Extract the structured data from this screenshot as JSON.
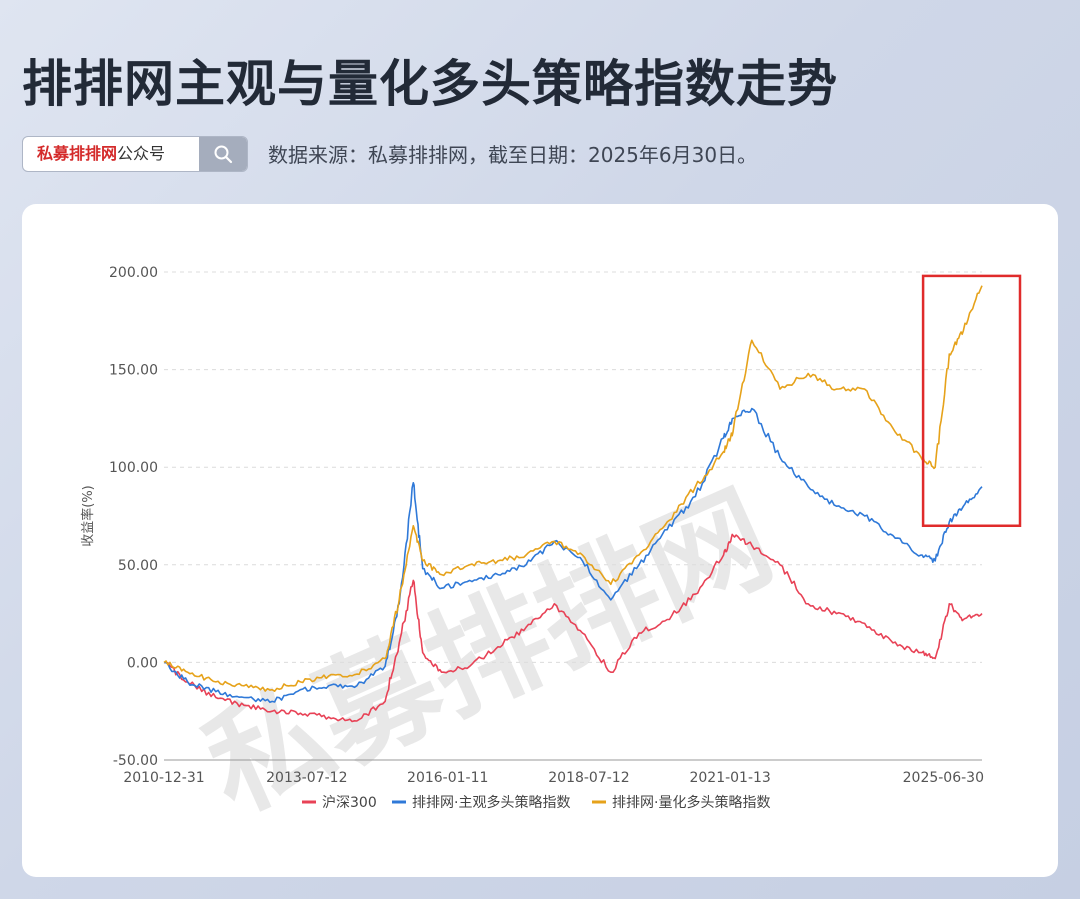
{
  "page_title": "排排网主观与量化多头策略指数走势",
  "account": {
    "highlight": "私募排排网",
    "suffix": "公众号"
  },
  "source_note": "数据来源：私募排排网，截至日期：2025年6月30日。",
  "icons": {
    "search": "search-icon"
  },
  "watermark": "私募排排网",
  "colors": {
    "hs300": "#e84256",
    "subjective": "#2f79d8",
    "quant": "#e6a21a",
    "highlight_box": "#e02b2b"
  },
  "chart_data": {
    "type": "line",
    "title": "",
    "ylabel": "收益率(%)",
    "xlabel": "",
    "ylim": [
      -50,
      200
    ],
    "y_ticks": [
      "200.00",
      "150.00",
      "100.00",
      "50.00",
      "0.00",
      "-50.00"
    ],
    "x_ticks": [
      "2010-12-31",
      "2013-07-12",
      "2016-01-11",
      "2018-07-12",
      "2021-01-13",
      "2025-06-30"
    ],
    "grid": "horizontal-dashed",
    "legend": "bottom",
    "x": [
      "2010-12-31",
      "2011-06",
      "2011-12",
      "2012-06",
      "2012-12",
      "2013-06",
      "2013-12",
      "2014-06",
      "2014-12",
      "2015-03",
      "2015-06",
      "2015-08",
      "2015-12",
      "2016-06",
      "2016-12",
      "2017-06",
      "2017-12",
      "2018-06",
      "2018-12",
      "2019-06",
      "2019-12",
      "2020-06",
      "2020-12",
      "2021-02",
      "2021-06",
      "2021-12",
      "2022-06",
      "2022-12",
      "2023-06",
      "2023-12",
      "2024-06",
      "2024-09",
      "2024-12",
      "2025-03",
      "2025-06-30"
    ],
    "series": [
      {
        "name": "沪深300",
        "values": [
          0,
          -10,
          -18,
          -22,
          -25,
          -26,
          -28,
          -30,
          -20,
          10,
          42,
          5,
          -5,
          -2,
          8,
          18,
          30,
          15,
          -5,
          15,
          22,
          35,
          55,
          65,
          60,
          50,
          30,
          25,
          20,
          10,
          5,
          2,
          30,
          22,
          25
        ]
      },
      {
        "name": "排排网·主观多头策略指数",
        "values": [
          0,
          -10,
          -15,
          -18,
          -20,
          -14,
          -12,
          -12,
          -2,
          30,
          92,
          48,
          38,
          42,
          45,
          50,
          62,
          52,
          32,
          50,
          68,
          85,
          115,
          125,
          130,
          105,
          90,
          80,
          75,
          65,
          55,
          52,
          72,
          80,
          90
        ]
      },
      {
        "name": "排排网·量化多头策略指数",
        "values": [
          0,
          -5,
          -10,
          -12,
          -14,
          -10,
          -7,
          -6,
          2,
          32,
          70,
          52,
          45,
          50,
          52,
          55,
          62,
          55,
          40,
          55,
          72,
          90,
          108,
          118,
          165,
          140,
          148,
          140,
          140,
          120,
          105,
          100,
          158,
          170,
          193
        ]
      }
    ],
    "annotation": {
      "type": "rectangle",
      "from_x": "2024-06",
      "to_x": "2025-06-30",
      "y_range": [
        70,
        198
      ]
    }
  }
}
